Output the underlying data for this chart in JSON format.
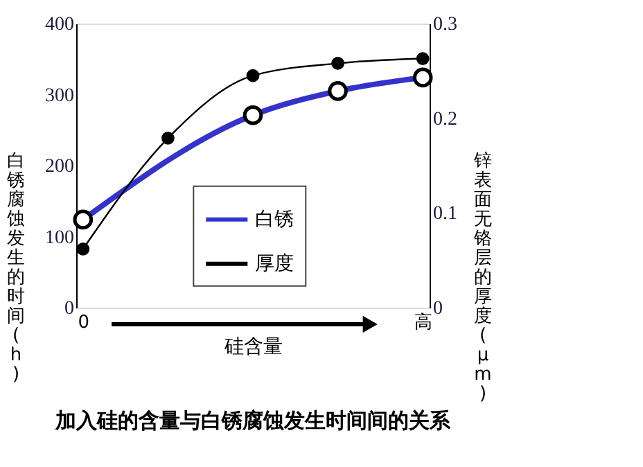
{
  "chart_data": {
    "type": "line",
    "title": "加入硅的含量与白锈腐蚀发生时间间的关系",
    "xlabel": "硅含量",
    "ylabel": "白锈腐蚀发生的时间(h)",
    "y2label": "锌表面无铬层的厚度(μm)",
    "categories": [
      "0",
      null,
      null,
      null,
      "高"
    ],
    "ylim": [
      0,
      400
    ],
    "yticks": [
      0,
      100,
      200,
      300,
      400
    ],
    "y2lim": [
      0,
      0.3
    ],
    "y2ticks": [
      0,
      0.1,
      0.2,
      0.3
    ],
    "grid": false,
    "legend": "bottom right",
    "marker": "circle",
    "line_style": "solid",
    "series": [
      {
        "name": "白锈",
        "color": "#3333cc",
        "values": [
          124,
          null,
          271,
          305,
          324
        ]
      },
      {
        "name": "厚度",
        "color": "#000000",
        "axis": "y2",
        "values": [
          0.062,
          0.179,
          0.245,
          0.258,
          0.263
        ]
      }
    ]
  }
}
